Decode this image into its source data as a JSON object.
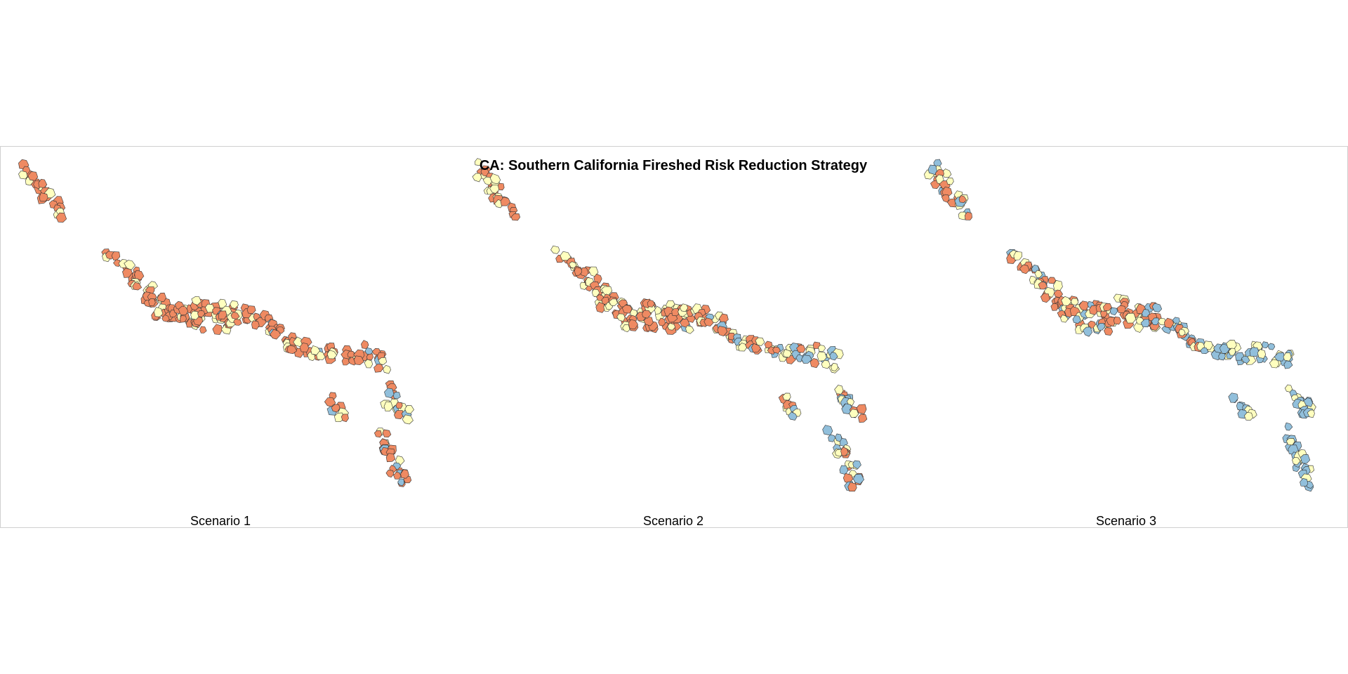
{
  "title": "CA: Southern California Fireshed Risk Reduction Strategy",
  "panels": [
    {
      "label": "Scenario 1"
    },
    {
      "label": "Scenario 2"
    },
    {
      "label": "Scenario 3"
    }
  ]
}
